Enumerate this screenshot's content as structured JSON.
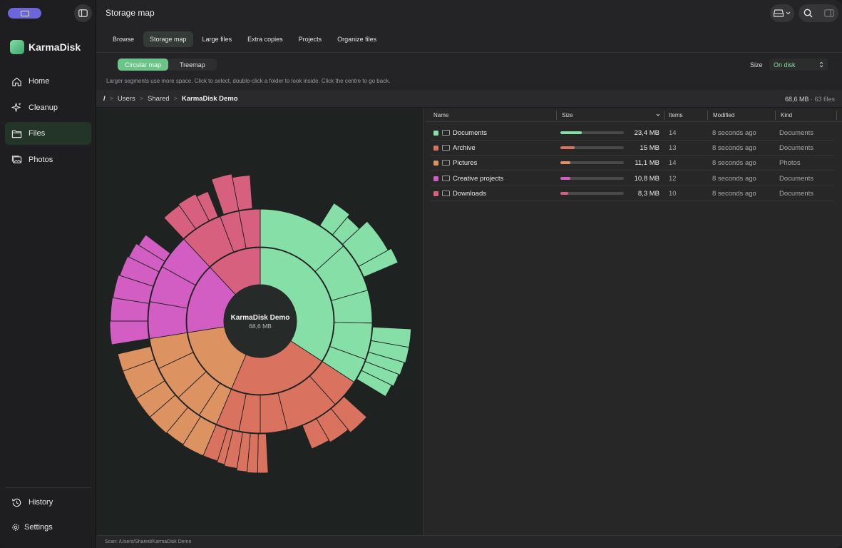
{
  "app": {
    "name": "KarmaDisk",
    "window_title": "Storage map"
  },
  "sidebar": {
    "items": [
      {
        "label": "Home",
        "icon": "home-icon"
      },
      {
        "label": "Cleanup",
        "icon": "sparkle-icon"
      },
      {
        "label": "Files",
        "icon": "folder-icon",
        "active": true
      },
      {
        "label": "Photos",
        "icon": "photos-icon"
      }
    ],
    "bottom": [
      {
        "label": "History",
        "icon": "history-icon"
      },
      {
        "label": "Settings",
        "icon": "gear-icon"
      }
    ]
  },
  "tabs": [
    {
      "label": "Browse"
    },
    {
      "label": "Storage map",
      "active": true
    },
    {
      "label": "Large files"
    },
    {
      "label": "Extra copies"
    },
    {
      "label": "Projects"
    },
    {
      "label": "Organize files"
    }
  ],
  "view_toggle": {
    "circular": "Circular map",
    "treemap": "Treemap",
    "selected": "Circular map"
  },
  "size_control": {
    "label": "Size",
    "value": "On disk"
  },
  "hint": "Larger segments use more space. Click to select, double-click a folder to look inside. Click the centre to go back.",
  "breadcrumb": {
    "root": "/",
    "items": [
      "Users",
      "Shared",
      "KarmaDisk Demo"
    ],
    "total": "68,6 MB",
    "files": "· 63 files"
  },
  "center": {
    "name": "KarmaDisk Demo",
    "size": "68,6 MB"
  },
  "table": {
    "columns": {
      "name": "Name",
      "size": "Size",
      "items": "Items",
      "modified": "Modified",
      "kind": "Kind"
    },
    "rows": [
      {
        "name": "Documents",
        "size": "23,4 MB",
        "fraction": 0.341,
        "items": "14",
        "modified": "8 seconds ago",
        "kind": "Documents",
        "color": "#85dfa7"
      },
      {
        "name": "Archive",
        "size": "15 MB",
        "fraction": 0.219,
        "items": "13",
        "modified": "8 seconds ago",
        "kind": "Documents",
        "color": "#d9735f"
      },
      {
        "name": "Pictures",
        "size": "11,1 MB",
        "fraction": 0.162,
        "items": "14",
        "modified": "8 seconds ago",
        "kind": "Photos",
        "color": "#dd9262"
      },
      {
        "name": "Creative projects",
        "size": "10,8 MB",
        "fraction": 0.157,
        "items": "12",
        "modified": "8 seconds ago",
        "kind": "Documents",
        "color": "#d25ec3"
      },
      {
        "name": "Downloads",
        "size": "8,3 MB",
        "fraction": 0.121,
        "items": "10",
        "modified": "8 seconds ago",
        "kind": "Documents",
        "color": "#d8607f"
      }
    ]
  },
  "status": "Scan: /Users/Shared/KarmaDisk Demo"
}
